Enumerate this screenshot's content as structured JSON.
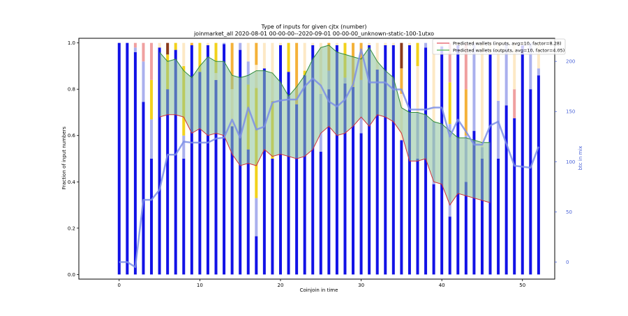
{
  "chart_data": {
    "type": "bar",
    "title": "Type of inputs for given cjtx (number)",
    "subtitle": "joinmarket_all 2020-08-01 00-00-00--2020-09-01 00-00-00_unknown-static-100-1utxo",
    "xlabel": "Coinjoin in time",
    "ylabel": "Fraction of input numbers",
    "y2label": "btc in mix",
    "xlim": [
      -5,
      54
    ],
    "ylim": [
      -0.02,
      1.02
    ],
    "y2lim": [
      -17,
      223
    ],
    "xticks": [
      0,
      10,
      20,
      30,
      40,
      50
    ],
    "yticks": [
      0.0,
      0.2,
      0.4,
      0.6,
      0.8,
      1.0
    ],
    "y2ticks": [
      0,
      50,
      100,
      150,
      200
    ],
    "legend_position": "top-right",
    "legend": [
      {
        "label": "Predicted wallets (inputs, avg=10, factor=8.28)",
        "color": "#e8727c"
      },
      {
        "label": "Predicted wallets (outputs, avg=10, factor=4.05)",
        "color": "#6fbf6f"
      }
    ],
    "colors": {
      "fresh": "#1212e6",
      "remix": "#aab0ee",
      "gold": "#f2d21c",
      "orange": "#f4b23a",
      "pink": "#f0a0a0",
      "cream": "#fde9c6",
      "brown": "#8b3a1a",
      "band_fill": "#8cc39a",
      "band_upper": "#2e8b3c",
      "band_lower": "#d0303a",
      "btc_line": "#7d8fe6",
      "axis2": "#4a63d8"
    },
    "x": [
      0,
      1,
      2,
      3,
      4,
      5,
      6,
      7,
      8,
      9,
      10,
      11,
      12,
      13,
      14,
      15,
      16,
      17,
      18,
      19,
      20,
      21,
      22,
      23,
      24,
      25,
      26,
      27,
      28,
      29,
      30,
      31,
      32,
      33,
      34,
      35,
      36,
      37,
      38,
      39,
      40,
      41,
      42,
      43,
      44,
      45,
      46,
      47,
      48,
      49,
      50,
      51,
      52
    ],
    "bars": [
      [
        [
          1.0,
          "fresh"
        ]
      ],
      [
        [
          1.0,
          "fresh"
        ]
      ],
      [
        [
          0.96,
          "fresh"
        ],
        [
          0.02,
          "remix"
        ],
        [
          0.02,
          "pink"
        ]
      ],
      [
        [
          0.745,
          "fresh"
        ],
        [
          0.175,
          "remix"
        ],
        [
          0.08,
          "pink"
        ]
      ],
      [
        [
          0.5,
          "fresh"
        ],
        [
          0.17,
          "remix"
        ],
        [
          0.17,
          "gold"
        ],
        [
          0.16,
          "pink"
        ]
      ],
      [
        [
          0.98,
          "fresh"
        ],
        [
          0.02,
          "cream"
        ]
      ],
      [
        [
          0.8,
          "fresh"
        ],
        [
          0.15,
          "gold"
        ],
        [
          0.05,
          "brown"
        ]
      ],
      [
        [
          0.97,
          "fresh"
        ],
        [
          0.03,
          "gold"
        ]
      ],
      [
        [
          0.5,
          "fresh"
        ],
        [
          0.1,
          "remix"
        ],
        [
          0.3,
          "gold"
        ],
        [
          0.1,
          "cream"
        ]
      ],
      [
        [
          0.99,
          "fresh"
        ],
        [
          0.01,
          "orange"
        ]
      ],
      [
        [
          0.875,
          "fresh"
        ],
        [
          0.125,
          "gold"
        ]
      ],
      [
        [
          0.99,
          "fresh"
        ],
        [
          0.01,
          "cream"
        ]
      ],
      [
        [
          0.84,
          "fresh"
        ],
        [
          0.03,
          "cream"
        ],
        [
          0.13,
          "gold"
        ]
      ],
      [
        [
          0.995,
          "fresh"
        ],
        [
          0.005,
          "remix"
        ]
      ],
      [
        [
          0.64,
          "fresh"
        ],
        [
          0.16,
          "cream"
        ],
        [
          0.2,
          "orange"
        ]
      ],
      [
        [
          0.97,
          "fresh"
        ],
        [
          0.03,
          "remix"
        ]
      ],
      [
        [
          0.54,
          "fresh"
        ],
        [
          0.28,
          "gold"
        ],
        [
          0.1,
          "remix"
        ],
        [
          0.08,
          "cream"
        ]
      ],
      [
        [
          0.165,
          "fresh"
        ],
        [
          0.165,
          "remix"
        ],
        [
          0.475,
          "gold"
        ],
        [
          0.1,
          "cream"
        ],
        [
          0.095,
          "orange"
        ]
      ],
      [
        [
          0.89,
          "fresh"
        ],
        [
          0.11,
          "cream"
        ]
      ],
      [
        [
          0.5,
          "fresh"
        ],
        [
          0.25,
          "gold"
        ],
        [
          0.25,
          "cream"
        ]
      ],
      [
        [
          0.99,
          "fresh"
        ],
        [
          0.01,
          "cream"
        ]
      ],
      [
        [
          0.875,
          "fresh"
        ],
        [
          0.125,
          "gold"
        ]
      ],
      [
        [
          0.735,
          "fresh"
        ],
        [
          0.265,
          "orange"
        ]
      ],
      [
        [
          0.86,
          "fresh"
        ],
        [
          0.02,
          "gold"
        ],
        [
          0.12,
          "cream"
        ]
      ],
      [
        [
          0.99,
          "fresh"
        ],
        [
          0.01,
          "cream"
        ]
      ],
      [
        [
          0.53,
          "fresh"
        ],
        [
          0.25,
          "remix"
        ],
        [
          0.22,
          "cream"
        ]
      ],
      [
        [
          0.8,
          "fresh"
        ],
        [
          0.08,
          "remix"
        ],
        [
          0.12,
          "orange"
        ]
      ],
      [
        [
          0.99,
          "fresh"
        ],
        [
          0.01,
          "cream"
        ]
      ],
      [
        [
          0.825,
          "fresh"
        ],
        [
          0.025,
          "remix"
        ],
        [
          0.15,
          "gold"
        ]
      ],
      [
        [
          0.81,
          "fresh"
        ],
        [
          0.19,
          "orange"
        ]
      ],
      [
        [
          0.61,
          "fresh"
        ],
        [
          0.23,
          "remix"
        ],
        [
          0.16,
          "orange"
        ]
      ],
      [
        [
          0.99,
          "fresh"
        ],
        [
          0.01,
          "cream"
        ]
      ],
      [
        [
          0.885,
          "fresh"
        ],
        [
          0.115,
          "cream"
        ]
      ],
      [
        [
          0.99,
          "fresh"
        ],
        [
          0.01,
          "cream"
        ]
      ],
      [
        [
          0.99,
          "fresh"
        ],
        [
          0.01,
          "cream"
        ]
      ],
      [
        [
          0.58,
          "fresh"
        ],
        [
          0.2,
          "cream"
        ],
        [
          0.11,
          "orange"
        ],
        [
          0.11,
          "brown"
        ]
      ],
      [
        [
          0.99,
          "fresh"
        ],
        [
          0.01,
          "cream"
        ]
      ],
      [
        [
          0.5,
          "fresh"
        ],
        [
          0.2,
          "remix"
        ],
        [
          0.2,
          "cream"
        ],
        [
          0.1,
          "gold"
        ]
      ],
      [
        [
          0.98,
          "fresh"
        ],
        [
          0.02,
          "remix"
        ]
      ],
      [
        [
          0.39,
          "fresh"
        ],
        [
          0.27,
          "remix"
        ],
        [
          0.34,
          "cream"
        ]
      ],
      [
        [
          0.985,
          "fresh"
        ],
        [
          0.015,
          "cream"
        ]
      ],
      [
        [
          0.25,
          "fresh"
        ],
        [
          0.4,
          "remix"
        ],
        [
          0.18,
          "gold"
        ],
        [
          0.17,
          "pink"
        ]
      ],
      [
        [
          0.99,
          "fresh"
        ],
        [
          0.01,
          "cream"
        ]
      ],
      [
        [
          0.4,
          "fresh"
        ],
        [
          0.2,
          "remix"
        ],
        [
          0.2,
          "orange"
        ],
        [
          0.2,
          "pink"
        ]
      ],
      [
        [
          0.62,
          "fresh"
        ],
        [
          0.38,
          "remix"
        ]
      ],
      [
        [
          0.5,
          "fresh"
        ],
        [
          0.05,
          "remix"
        ],
        [
          0.45,
          "cream"
        ]
      ],
      [
        [
          0.95,
          "fresh"
        ],
        [
          0.05,
          "cream"
        ]
      ],
      [
        [
          0.5,
          "fresh"
        ],
        [
          0.25,
          "remix"
        ],
        [
          0.25,
          "cream"
        ]
      ],
      [
        [
          0.73,
          "fresh"
        ],
        [
          0.27,
          "remix"
        ]
      ],
      [
        [
          0.675,
          "fresh"
        ],
        [
          0.125,
          "pink"
        ],
        [
          0.2,
          "cream"
        ]
      ],
      [
        [
          0.99,
          "fresh"
        ],
        [
          0.01,
          "cream"
        ]
      ],
      [
        [
          0.8,
          "fresh"
        ],
        [
          0.2,
          "remix"
        ]
      ],
      [
        [
          0.86,
          "fresh"
        ],
        [
          0.03,
          "remix"
        ],
        [
          0.11,
          "cream"
        ]
      ]
    ],
    "band_x": [
      5,
      6,
      7,
      8,
      9,
      10,
      11,
      12,
      13,
      14,
      15,
      16,
      17,
      18,
      19,
      20,
      21,
      22,
      23,
      24,
      25,
      26,
      27,
      28,
      29,
      30,
      31,
      32,
      33,
      34,
      35,
      36,
      37,
      38,
      39,
      40,
      41,
      42,
      43,
      44,
      45,
      46
    ],
    "band_upper": [
      0.96,
      0.92,
      0.93,
      0.88,
      0.85,
      0.9,
      0.94,
      0.92,
      0.92,
      0.86,
      0.85,
      0.86,
      0.88,
      0.88,
      0.87,
      0.83,
      0.77,
      0.81,
      0.86,
      0.93,
      0.98,
      0.99,
      0.96,
      0.95,
      0.94,
      0.93,
      0.98,
      0.92,
      0.88,
      0.85,
      0.72,
      0.7,
      0.7,
      0.69,
      0.66,
      0.65,
      0.62,
      0.59,
      0.59,
      0.58,
      0.57,
      0.57
    ],
    "band_lower": [
      0.68,
      0.69,
      0.69,
      0.68,
      0.61,
      0.63,
      0.6,
      0.61,
      0.6,
      0.52,
      0.47,
      0.48,
      0.47,
      0.54,
      0.51,
      0.52,
      0.51,
      0.5,
      0.51,
      0.54,
      0.61,
      0.64,
      0.6,
      0.61,
      0.64,
      0.68,
      0.64,
      0.69,
      0.68,
      0.66,
      0.61,
      0.49,
      0.49,
      0.5,
      0.4,
      0.39,
      0.3,
      0.35,
      0.34,
      0.33,
      0.32,
      0.31
    ],
    "btc_x": [
      0,
      1,
      2,
      3,
      4,
      5,
      6,
      7,
      8,
      9,
      10,
      11,
      12,
      13,
      14,
      15,
      16,
      17,
      18,
      19,
      20,
      21,
      22,
      23,
      24,
      25,
      26,
      27,
      28,
      29,
      30,
      31,
      32,
      33,
      34,
      35,
      36,
      37,
      38,
      39,
      40,
      41,
      42,
      43,
      44,
      45,
      46,
      47,
      48,
      49,
      50,
      51,
      52
    ],
    "btc_y": [
      0,
      0,
      -5,
      62,
      62,
      72,
      107,
      107,
      120,
      119,
      119,
      119,
      123,
      124,
      142,
      124,
      154,
      132,
      135,
      159,
      161,
      162,
      162,
      175,
      183,
      176,
      160,
      155,
      162,
      177,
      212,
      179,
      179,
      179,
      172,
      172,
      152,
      152,
      152,
      154,
      154,
      125,
      142,
      130,
      117,
      117,
      136,
      140,
      118,
      96,
      95,
      94,
      115
    ]
  }
}
